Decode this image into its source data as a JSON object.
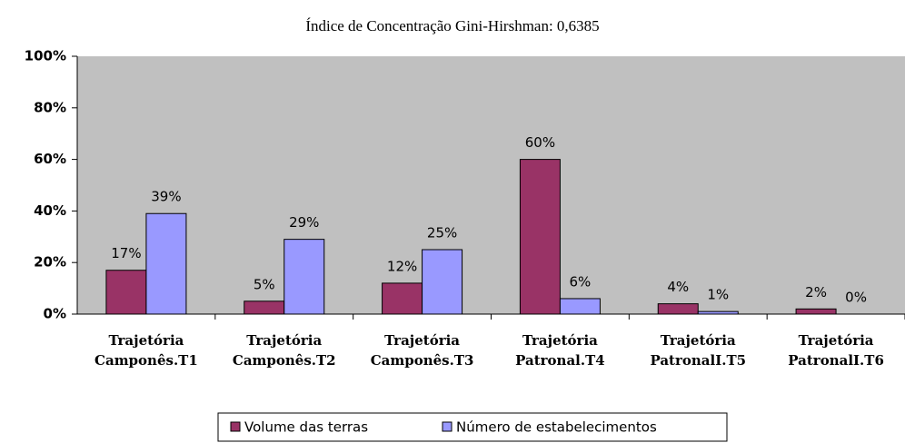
{
  "chart_data": {
    "type": "bar",
    "title": "Índice de Concentração Gini-Hirshman: 0,6385",
    "categories": [
      "Trajetória Camponês.T1",
      "Trajetória Camponês.T2",
      "Trajetória Camponês.T3",
      "Trajetória Patronal.T4",
      "Trajetória PatronalI.T5",
      "Trajetória PatronalI.T6"
    ],
    "series": [
      {
        "name": "Volume das terras",
        "color": "#993366",
        "values": [
          17,
          5,
          12,
          60,
          4,
          2
        ],
        "value_labels": [
          "17%",
          "5%",
          "12%",
          "60%",
          "4%",
          "2%"
        ]
      },
      {
        "name": "Número de estabelecimentos",
        "color": "#9999ff",
        "values": [
          39,
          29,
          25,
          6,
          1,
          0
        ],
        "value_labels": [
          "39%",
          "29%",
          "25%",
          "6%",
          "1%",
          "0%"
        ]
      }
    ],
    "ylim": [
      0,
      100
    ],
    "yticks": [
      {
        "value": 0,
        "label": "0%"
      },
      {
        "value": 20,
        "label": "20%"
      },
      {
        "value": 40,
        "label": "40%"
      },
      {
        "value": 60,
        "label": "60%"
      },
      {
        "value": 80,
        "label": "80%"
      },
      {
        "value": 100,
        "label": "100%"
      }
    ],
    "grid": false,
    "background": "#c0c0c0",
    "legend": "bottom"
  }
}
